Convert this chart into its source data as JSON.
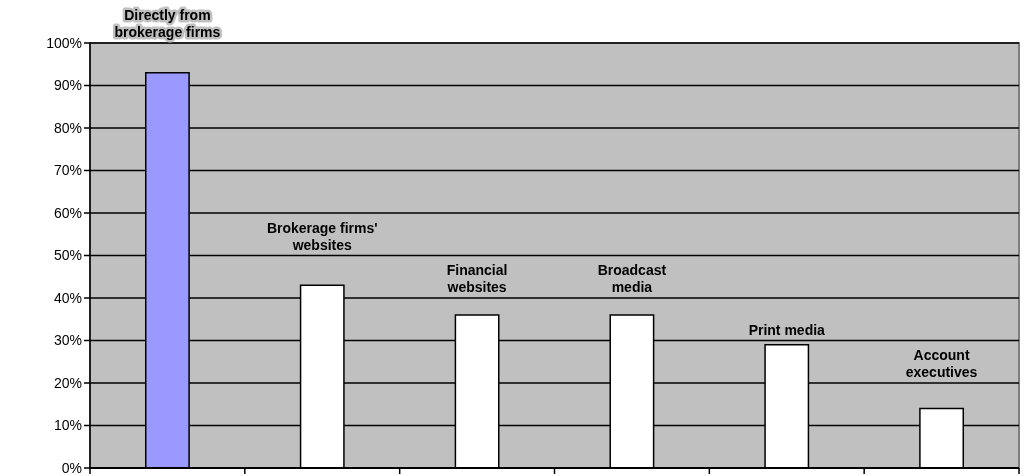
{
  "chart_data": {
    "type": "bar",
    "categories": [
      "Directly from brokerage firms",
      "Brokerage firms' websites",
      "Financial websites",
      "Broadcast media",
      "Print media",
      "Account executives"
    ],
    "values": [
      93,
      43,
      36,
      36,
      29,
      14
    ],
    "colors": [
      "#9999ff",
      "#ffffff",
      "#ffffff",
      "#ffffff",
      "#ffffff",
      "#ffffff"
    ],
    "ylim": [
      0,
      100
    ],
    "yticks": [
      {
        "value": 0,
        "label": "0%"
      },
      {
        "value": 10,
        "label": "10%"
      },
      {
        "value": 20,
        "label": "20%"
      },
      {
        "value": 30,
        "label": "30%"
      },
      {
        "value": 40,
        "label": "40%"
      },
      {
        "value": 50,
        "label": "50%"
      },
      {
        "value": 60,
        "label": "60%"
      },
      {
        "value": 70,
        "label": "70%"
      },
      {
        "value": 80,
        "label": "80%"
      },
      {
        "value": 90,
        "label": "90%"
      },
      {
        "value": 100,
        "label": "100%"
      }
    ],
    "grid": "y"
  }
}
